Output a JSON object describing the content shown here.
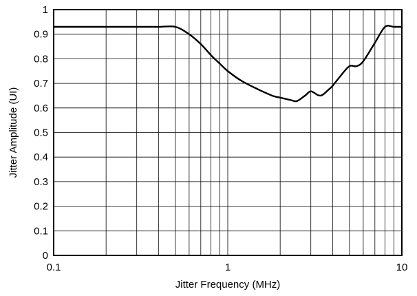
{
  "chart_data": {
    "type": "line",
    "title": "",
    "xlabel": "Jitter Frequency (MHz)",
    "ylabel": "Jitter Amplitude (UI)",
    "x_scale": "log",
    "xlim": [
      0.1,
      10
    ],
    "ylim": [
      0,
      1
    ],
    "grid": true,
    "x_tick_labels": [
      "0.1",
      "1",
      "10"
    ],
    "y_tick_labels": [
      "0",
      "0.1",
      "0.2",
      "0.3",
      "0.4",
      "0.5",
      "0.6",
      "0.7",
      "0.8",
      "0.9",
      "1"
    ],
    "series": [
      {
        "x": [
          0.1,
          0.2,
          0.3,
          0.4,
          0.5,
          0.6,
          0.7,
          0.8,
          0.9,
          1.0,
          1.2,
          1.5,
          1.8,
          2.0,
          2.3,
          2.5,
          2.8,
          3.0,
          3.3,
          3.5,
          3.8,
          4.0,
          4.5,
          5.0,
          5.5,
          6.0,
          7.0,
          8.0,
          9.0,
          10.0
        ],
        "y": [
          0.93,
          0.93,
          0.93,
          0.93,
          0.93,
          0.9,
          0.86,
          0.815,
          0.78,
          0.75,
          0.71,
          0.675,
          0.65,
          0.642,
          0.632,
          0.628,
          0.652,
          0.668,
          0.652,
          0.653,
          0.675,
          0.69,
          0.735,
          0.77,
          0.77,
          0.79,
          0.865,
          0.93,
          0.93,
          0.93
        ]
      }
    ]
  }
}
